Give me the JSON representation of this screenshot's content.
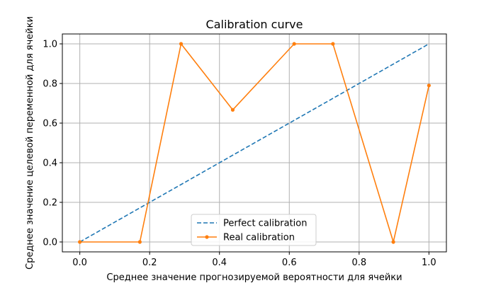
{
  "chart_data": {
    "type": "line",
    "title": "Calibration curve",
    "xlabel": "Среднее значение прогнозируемой вероятности для ячейки",
    "ylabel": "Среднее значение целевой переменной для ячейки",
    "xlim": [
      -0.05,
      1.05
    ],
    "ylim": [
      -0.05,
      1.05
    ],
    "xticks": [
      0.0,
      0.2,
      0.4,
      0.6,
      0.8,
      1.0
    ],
    "yticks": [
      0.0,
      0.2,
      0.4,
      0.6,
      0.8,
      1.0
    ],
    "tick_labels_x": [
      "0.0",
      "0.2",
      "0.4",
      "0.6",
      "0.8",
      "1.0"
    ],
    "tick_labels_y": [
      "0.0",
      "0.2",
      "0.4",
      "0.6",
      "0.8",
      "1.0"
    ],
    "grid": true,
    "legend_position": "lower center",
    "series": [
      {
        "name": "Perfect calibration",
        "style": "dashed",
        "color": "#1f77b4",
        "x": [
          0.0,
          1.0
        ],
        "y": [
          0.0,
          1.0
        ]
      },
      {
        "name": "Real calibration",
        "style": "solid-markers",
        "color": "#ff7f0e",
        "x": [
          0.0,
          0.172,
          0.29,
          0.438,
          0.614,
          0.725,
          0.898,
          1.0
        ],
        "y": [
          0.0,
          0.0,
          1.0,
          0.667,
          1.0,
          1.0,
          0.0,
          0.79
        ]
      }
    ]
  }
}
